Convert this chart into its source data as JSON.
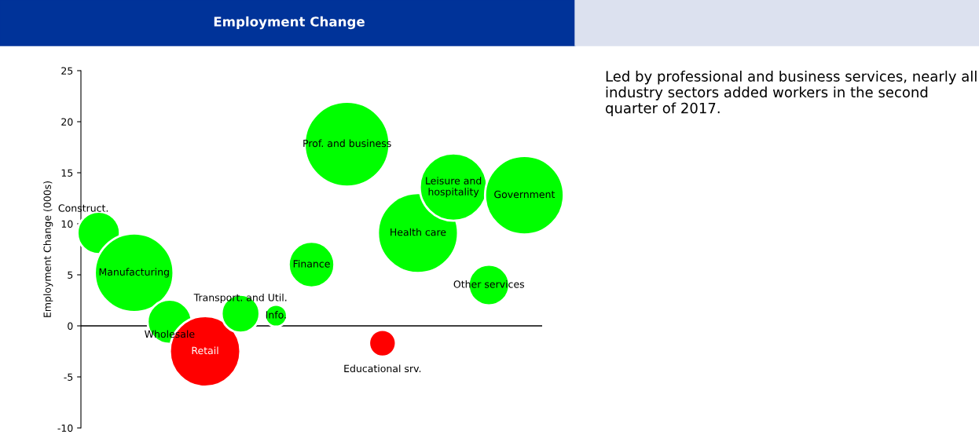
{
  "chart_data": {
    "type": "bubble",
    "title": "Employment Change",
    "ylabel": "Employment Change (000s)",
    "annotations": [
      "Led by professional and business services, nearly all industry sectors added workers in the second quarter of 2017."
    ],
    "categories": [
      null,
      null,
      null,
      null,
      null,
      null,
      null,
      null,
      null,
      null,
      null,
      null,
      null
    ],
    "values": [
      9.1,
      5.2,
      0.4,
      -2.5,
      1.2,
      1.0,
      6.0,
      17.8,
      -1.7,
      9.1,
      13.6,
      4.0,
      12.8
    ],
    "sizes": [
      0.25,
      0.86,
      0.27,
      0.69,
      0.2,
      0.067,
      0.29,
      1.0,
      0.1,
      0.89,
      0.63,
      0.23,
      0.86
    ],
    "colors": [
      "#00ff00",
      "#00ff00",
      "#00ff00",
      "#ff0000",
      "#00ff00",
      "#00ff00",
      "#00ff00",
      "#00ff00",
      "#ff0000",
      "#00ff00",
      "#00ff00",
      "#00ff00",
      "#00ff00"
    ],
    "value_labels": [
      "Construct.",
      "Manufacturing",
      "Wholesale",
      "Retail",
      "Transport. and Util.",
      "Info.",
      "Finance",
      "Prof. and business",
      "Educational srv.",
      "Health care",
      "Leisure and\nhospitality",
      "Other services",
      "Government"
    ],
    "ylim": [
      -10,
      25
    ],
    "yticks": [
      -10,
      -5,
      0,
      5,
      10,
      15,
      20,
      25
    ],
    "ref_lines": [
      {
        "axis": "y",
        "value": 0,
        "color": "#000000"
      }
    ],
    "grid": false,
    "legend": false
  }
}
